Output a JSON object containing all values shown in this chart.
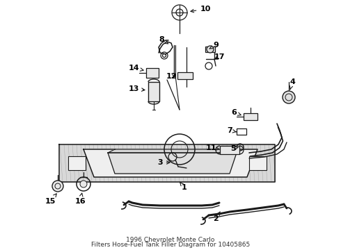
{
  "title_line1": "1996 Chevrolet Monte Carlo",
  "title_line2": "Filters Hose-Fuel Tank Filler Diagram for 10405865",
  "bg": "#ffffff",
  "lc": "#1a1a1a",
  "fig_w": 4.9,
  "fig_h": 3.6,
  "dpi": 100
}
